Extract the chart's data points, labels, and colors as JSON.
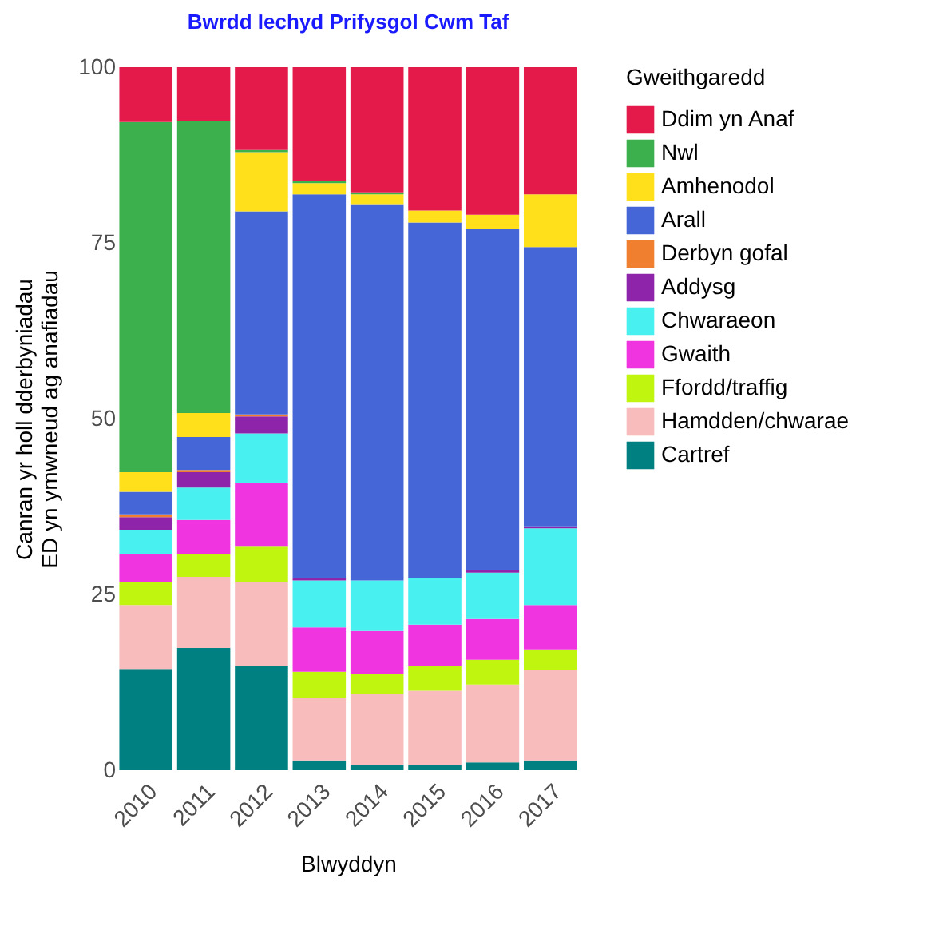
{
  "chart_data": {
    "type": "bar",
    "stacked": true,
    "title": "Bwrdd Iechyd Prifysgol Cwm Taf",
    "xlabel": "Blwyddyn",
    "ylabel": "Canran yr holl dderbyniadau\nED yn ymwneud ag anafiadau",
    "legend_title": "Gweithgaredd",
    "legend": "right",
    "grid": false,
    "categories": [
      "2010",
      "2011",
      "2012",
      "2013",
      "2014",
      "2015",
      "2016",
      "2017"
    ],
    "ylim": [
      0,
      100
    ],
    "yticks": [
      0,
      25,
      50,
      75,
      100
    ],
    "series": [
      {
        "name": "Cartref",
        "color": "#008080",
        "values": [
          14.4,
          17.4,
          14.9,
          1.4,
          0.8,
          0.8,
          1.1,
          1.4
        ]
      },
      {
        "name": "Hamdden/chwarae",
        "color": "#f8bcbc",
        "values": [
          9.1,
          10.1,
          11.8,
          8.9,
          10.0,
          10.5,
          11.1,
          12.9
        ]
      },
      {
        "name": "Ffordd/traffig",
        "color": "#c0f510",
        "values": [
          3.2,
          3.2,
          5.1,
          3.7,
          2.9,
          3.6,
          3.5,
          2.9
        ]
      },
      {
        "name": "Gwaith",
        "color": "#f034e0",
        "values": [
          4.0,
          4.9,
          9.0,
          6.3,
          6.1,
          5.8,
          5.8,
          6.3
        ]
      },
      {
        "name": "Chwaraeon",
        "color": "#48f0f0",
        "values": [
          3.5,
          4.6,
          7.1,
          6.7,
          7.2,
          6.6,
          6.6,
          10.9
        ]
      },
      {
        "name": "Addysg",
        "color": "#8e24aa",
        "values": [
          1.8,
          2.2,
          2.4,
          0.3,
          0,
          0,
          0.3,
          0.3
        ]
      },
      {
        "name": "Derbyn gofal",
        "color": "#f08030",
        "values": [
          0.4,
          0.3,
          0.3,
          0,
          0,
          0,
          0,
          0
        ]
      },
      {
        "name": "Arall",
        "color": "#4466d6",
        "values": [
          3.2,
          4.7,
          28.9,
          54.6,
          53.5,
          50.6,
          48.6,
          39.7
        ]
      },
      {
        "name": "Amhenodol",
        "color": "#ffe01a",
        "values": [
          2.8,
          3.4,
          8.4,
          1.6,
          1.4,
          1.7,
          2.0,
          7.5
        ]
      },
      {
        "name": "Nwl",
        "color": "#3cb04c",
        "values": [
          49.8,
          41.6,
          0.3,
          0.3,
          0.3,
          0,
          0,
          0
        ]
      },
      {
        "name": "Ddim yn Anaf",
        "color": "#e41a4a",
        "values": [
          7.8,
          7.6,
          11.8,
          16.2,
          17.8,
          20.4,
          21.0,
          18.1
        ]
      }
    ]
  }
}
